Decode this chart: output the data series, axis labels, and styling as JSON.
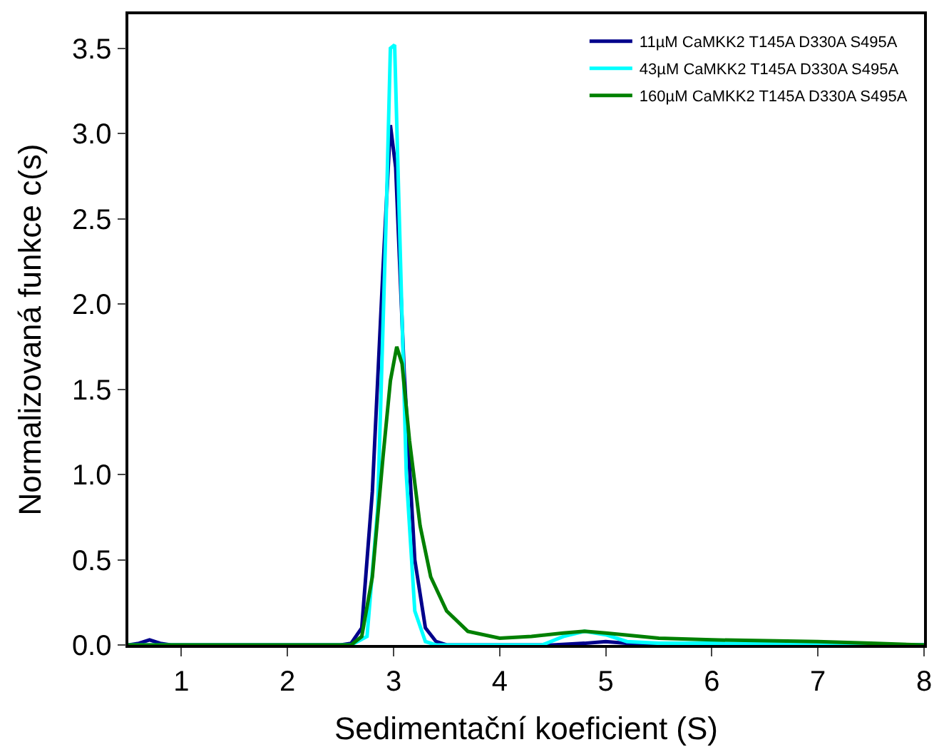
{
  "chart_data": {
    "type": "line",
    "xlabel": "Sedimentační koeficient (S)",
    "ylabel": "Normalizovaná funkce c(s)",
    "xlim": [
      0.5,
      8
    ],
    "xticks": [
      1,
      2,
      3,
      4,
      5,
      6,
      7,
      8
    ],
    "ylim": [
      0,
      3.7
    ],
    "yticks": [
      {
        "value": 0,
        "label": "0.0"
      },
      0.5,
      {
        "value": 1,
        "label": "1.0"
      },
      1.5,
      {
        "value": 2,
        "label": "2.0"
      },
      2.5,
      {
        "value": 3,
        "label": "3.0"
      },
      3.5
    ],
    "legend": "top right",
    "marker": "none",
    "line_style": "solid",
    "series": [
      {
        "name": "11µM CaMKK2 T145A D330A S495A",
        "color": "#00008b",
        "x": [
          0.5,
          0.6,
          0.7,
          0.8,
          0.9,
          2.5,
          2.6,
          2.7,
          2.8,
          2.9,
          2.97,
          3.02,
          3.1,
          3.2,
          3.3,
          3.4,
          3.5,
          4.5,
          4.8,
          5.0,
          5.2,
          5.5,
          8
        ],
        "values": [
          0,
          0.01,
          0.03,
          0.01,
          0,
          0,
          0.01,
          0.1,
          0.9,
          2.2,
          3.05,
          2.8,
          1.6,
          0.5,
          0.1,
          0.02,
          0,
          0,
          0.01,
          0.02,
          0.01,
          0,
          0
        ]
      },
      {
        "name": "43µM CaMKK2 T145A D330A S495A",
        "color": "#00ffff",
        "x": [
          0.5,
          2.6,
          2.75,
          2.85,
          2.93,
          2.97,
          3.01,
          3.05,
          3.12,
          3.2,
          3.3,
          3.4,
          4.4,
          4.6,
          4.8,
          5.0,
          5.2,
          5.5,
          6,
          8
        ],
        "values": [
          0,
          0,
          0.05,
          0.8,
          2.5,
          3.5,
          3.52,
          2.6,
          1.0,
          0.2,
          0.02,
          0,
          0,
          0.05,
          0.08,
          0.06,
          0.02,
          0.01,
          0.01,
          0
        ]
      },
      {
        "name": "160µM CaMKK2 T145A D330A S495A",
        "color": "#008000",
        "x": [
          0.5,
          2.6,
          2.7,
          2.8,
          2.9,
          2.97,
          3.03,
          3.08,
          3.15,
          3.25,
          3.35,
          3.5,
          3.7,
          4.0,
          4.3,
          4.6,
          4.8,
          5.0,
          5.5,
          6,
          7,
          7.5,
          8
        ],
        "values": [
          0,
          0,
          0.05,
          0.4,
          1.1,
          1.55,
          1.75,
          1.65,
          1.2,
          0.7,
          0.4,
          0.2,
          0.08,
          0.04,
          0.05,
          0.07,
          0.08,
          0.07,
          0.04,
          0.03,
          0.02,
          0.01,
          0
        ]
      }
    ]
  }
}
